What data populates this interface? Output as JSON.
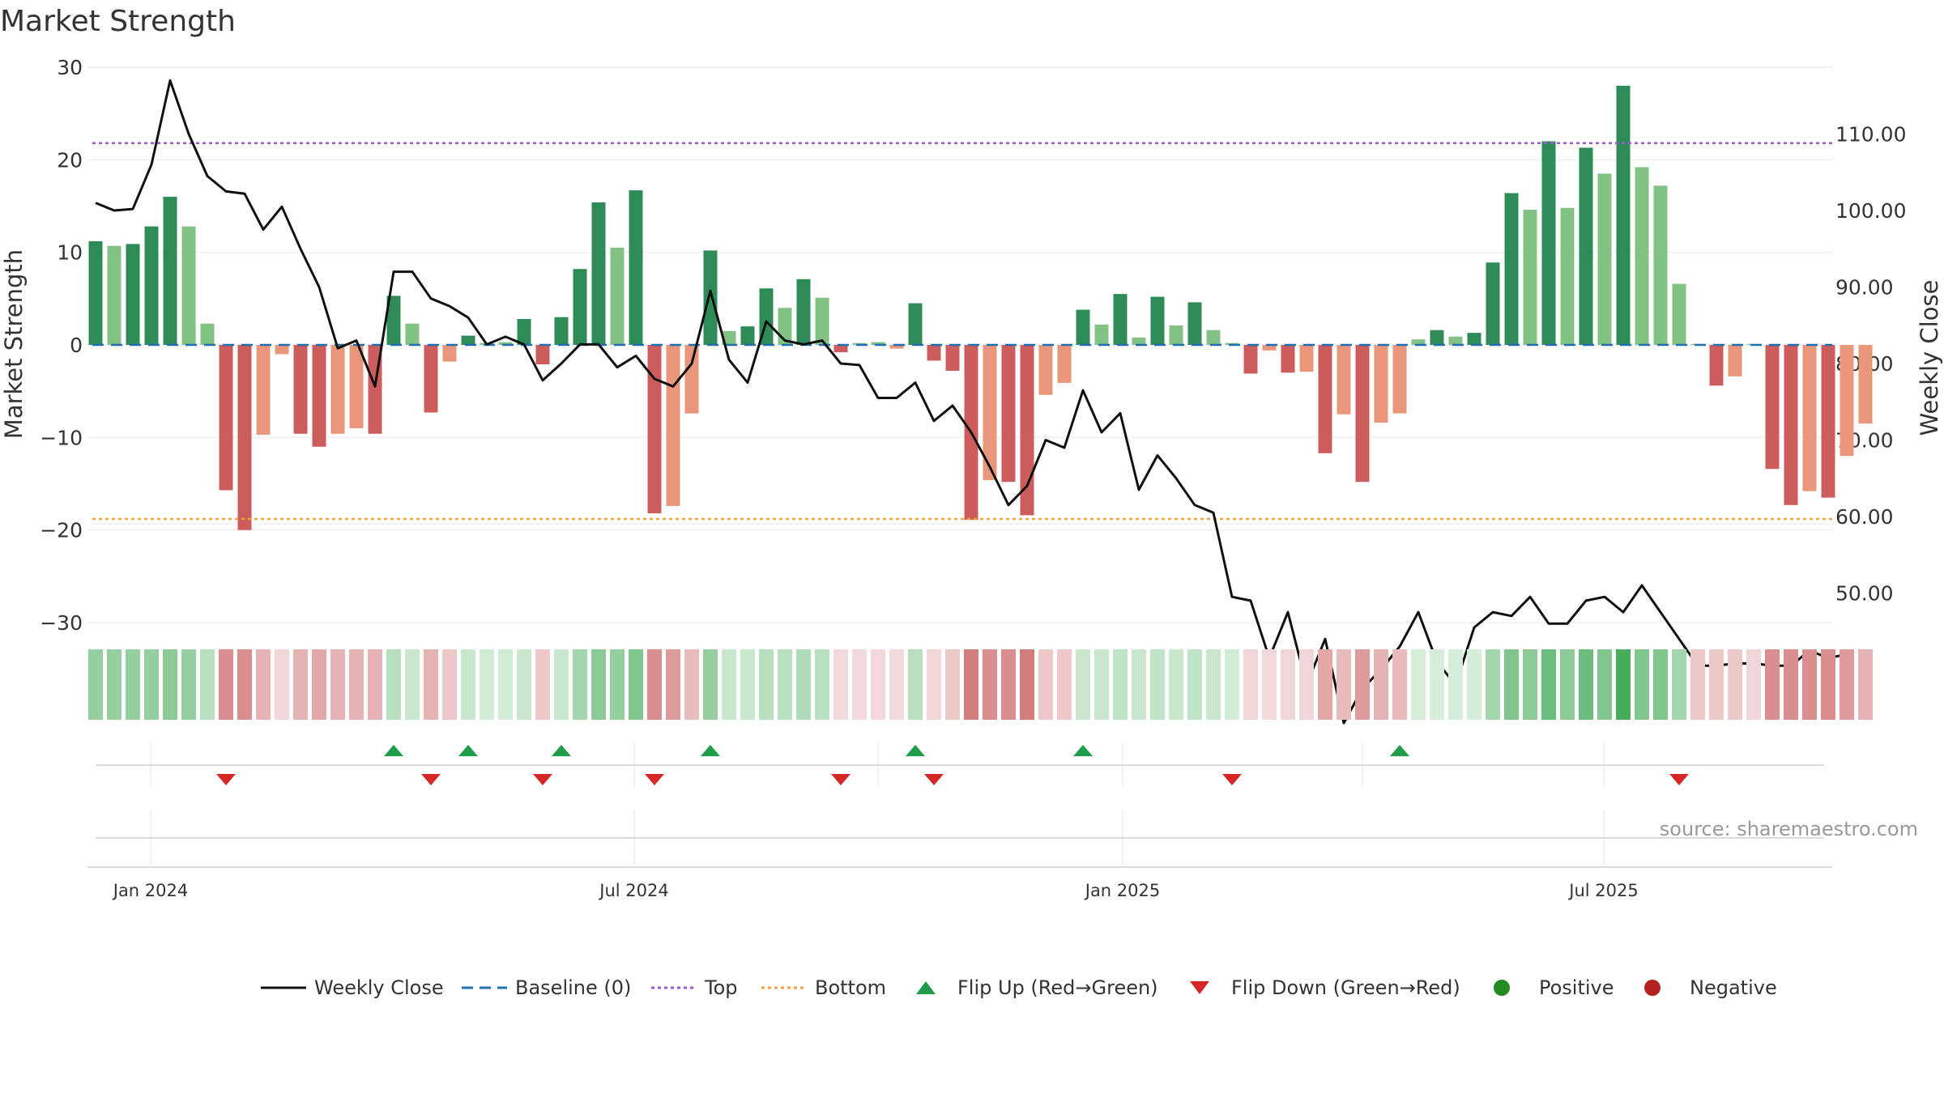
{
  "chart_data": {
    "type": "bar",
    "title": "Market Strength",
    "ylabel": "Market Strength",
    "y2label": "Weekly Close Price",
    "ylim": [
      -30,
      30
    ],
    "y2lim": [
      45,
      120
    ],
    "yticks": [
      "30",
      "20",
      "10",
      "0",
      "−10",
      "−20",
      "−30"
    ],
    "y2ticks": [
      "110.00",
      "100.00",
      "90.00",
      "80.00",
      "70.00",
      "60.00",
      "50.00"
    ],
    "xticks": [
      "Jan 2024",
      "Jul 2024",
      "Jan 2025",
      "Jul 2025"
    ],
    "top_line": 21.8,
    "bottom_line": -18.8,
    "baseline": 0,
    "strength": [
      11.2,
      10.7,
      10.9,
      12.8,
      16.0,
      12.8,
      2.3,
      -15.7,
      -20.0,
      -9.7,
      -1.0,
      -9.6,
      -11.0,
      -9.6,
      -9.0,
      -9.6,
      5.3,
      2.3,
      -7.3,
      -1.8,
      1.0,
      0.2,
      0.3,
      2.8,
      -2.1,
      3.0,
      8.2,
      15.4,
      10.5,
      16.7,
      -18.2,
      -17.4,
      -7.4,
      10.2,
      1.5,
      2.0,
      6.1,
      4.0,
      7.1,
      5.1,
      -0.8,
      0.2,
      0.3,
      -0.4,
      4.5,
      -1.7,
      -2.8,
      -18.9,
      -14.6,
      -14.8,
      -18.4,
      -5.4,
      -4.1,
      3.8,
      2.2,
      5.5,
      0.8,
      5.2,
      2.1,
      4.6,
      1.6,
      0.2,
      -3.1,
      -0.6,
      -3.0,
      -2.9,
      -11.7,
      -7.5,
      -14.8,
      -8.4,
      -7.4,
      0.6,
      1.6,
      0.9,
      1.3,
      8.9,
      16.4,
      14.6,
      22.0,
      14.8,
      21.3,
      18.5,
      28.0,
      19.2,
      17.2,
      6.6,
      0.1,
      -4.4,
      -3.4,
      0.1,
      -13.4,
      -17.3,
      -15.8,
      -16.5,
      -12.0,
      -8.5
    ],
    "bar_shade": [
      "dark",
      "light",
      "dark",
      "dark",
      "dark",
      "light",
      "light",
      "dark",
      "dark",
      "light",
      "light",
      "dark",
      "dark",
      "light",
      "light",
      "dark",
      "dark",
      "light",
      "dark",
      "light",
      "dark",
      "light",
      "light",
      "dark",
      "dark",
      "dark",
      "dark",
      "dark",
      "light",
      "dark",
      "dark",
      "light",
      "light",
      "dark",
      "light",
      "dark",
      "dark",
      "light",
      "dark",
      "light",
      "dark",
      "light",
      "light",
      "light",
      "dark",
      "dark",
      "dark",
      "dark",
      "light",
      "dark",
      "dark",
      "light",
      "light",
      "dark",
      "light",
      "dark",
      "light",
      "dark",
      "light",
      "dark",
      "light",
      "light",
      "dark",
      "light",
      "dark",
      "light",
      "dark",
      "light",
      "dark",
      "light",
      "light",
      "light",
      "dark",
      "light",
      "dark",
      "dark",
      "dark",
      "light",
      "dark",
      "light",
      "dark",
      "light",
      "dark",
      "light",
      "light",
      "light",
      "light",
      "dark",
      "light",
      "light",
      "dark",
      "dark",
      "light",
      "dark",
      "light",
      "light"
    ],
    "weekly_close": [
      101.0,
      100.0,
      100.2,
      106.0,
      117.0,
      110.0,
      104.5,
      102.5,
      102.2,
      97.5,
      100.5,
      95.0,
      90.0,
      82.0,
      83.0,
      77.0,
      92.0,
      92.0,
      88.5,
      87.5,
      86.0,
      82.5,
      83.5,
      82.5,
      77.8,
      80.0,
      82.5,
      82.5,
      79.5,
      81.0,
      78.0,
      77.0,
      80.0,
      89.5,
      80.5,
      77.5,
      85.5,
      83.0,
      82.5,
      83.0,
      80.0,
      79.8,
      75.5,
      75.5,
      77.5,
      72.5,
      74.5,
      71.0,
      66.5,
      61.5,
      64.0,
      70.0,
      69.0,
      76.5,
      71.0,
      73.5,
      63.5,
      68.0,
      65.0,
      61.5,
      60.5,
      49.5,
      49.0,
      41.5,
      47.5,
      38.0,
      44.0,
      33.0,
      37.5,
      40.0,
      43.0,
      47.5,
      41.0,
      38.0,
      45.5,
      47.5,
      47.0,
      49.5,
      46.0,
      46.0,
      49.0,
      49.5,
      47.5,
      51.0,
      47.5,
      44.0,
      40.5,
      40.5,
      40.8,
      40.8,
      40.5,
      40.5,
      42.5,
      41.5,
      42.0
    ],
    "heat_colors": [
      "#95cf9f",
      "#95cf9f",
      "#95cf9f",
      "#95cf9f",
      "#8ccb98",
      "#95cf9f",
      "#b8e0bf",
      "#d98f8f",
      "#d98f8f",
      "#e5b3b3",
      "#f0d6d6",
      "#e5b3b3",
      "#e2a7a7",
      "#e5b3b3",
      "#e5b3b3",
      "#e5b3b3",
      "#b8e0bf",
      "#c9e8cd",
      "#e5b3b3",
      "#ecc9c9",
      "#c9e8cd",
      "#d2ebd6",
      "#d2ebd6",
      "#c9e8cd",
      "#eec8c8",
      "#c9e8cd",
      "#a4d6ad",
      "#8ccb98",
      "#95cf9f",
      "#80c68e",
      "#d98f8f",
      "#dd9b9b",
      "#e8bcbc",
      "#95cf9f",
      "#c9e8cd",
      "#c9e8cd",
      "#b8e0bf",
      "#b8e0bf",
      "#b0dcb8",
      "#b8e0bf",
      "#f2dada",
      "#f2dada",
      "#f2dada",
      "#f2dada",
      "#b8e0bf",
      "#f0d6d6",
      "#ecc9c9",
      "#d27c7c",
      "#d98f8f",
      "#d98f8f",
      "#d27c7c",
      "#eec8c8",
      "#eec8c8",
      "#c9e8cd",
      "#c9e8cd",
      "#c0e4c6",
      "#c9e8cd",
      "#c0e4c6",
      "#c9e8cd",
      "#c0e4c6",
      "#c9e8cd",
      "#d2ebd6",
      "#f0d6d6",
      "#f2dada",
      "#f0d6d6",
      "#f0d6d6",
      "#e2a7a7",
      "#e8bcbc",
      "#dd9b9b",
      "#e5b3b3",
      "#e8bcbc",
      "#d6eed9",
      "#d6eed9",
      "#d6eed9",
      "#d6eed9",
      "#a4d6ad",
      "#7fc58d",
      "#8ccb98",
      "#6cbd7d",
      "#8ccb98",
      "#6cbd7d",
      "#80c68e",
      "#48ad5b",
      "#80c68e",
      "#80c68e",
      "#a4d6ad",
      "#eec8c8",
      "#ecc9c9",
      "#ecc9c9",
      "#f0d6d6",
      "#d98f8f",
      "#d98f8f",
      "#d98f8f",
      "#d98f8f",
      "#dd9b9b",
      "#e5b3b3"
    ],
    "flip_up_weeks": [
      16,
      20,
      25,
      33,
      44,
      53,
      70
    ],
    "flip_down_weeks": [
      7,
      18,
      24,
      30,
      40,
      45,
      61,
      85
    ],
    "colors": {
      "bar_pos_dark": "#2e8b57",
      "bar_pos_light": "#82c284",
      "bar_neg_dark": "#cd5c5c",
      "bar_neg_light": "#e9967a",
      "close_line": "#111111",
      "baseline": "#1f6fb2",
      "top": "#9b59d0",
      "bottom": "#f0a040",
      "flip_up": "#1f9d4a",
      "flip_down": "#d62728",
      "positive": "#228b22",
      "negative": "#b22222"
    },
    "legend": [
      "Weekly Close",
      "Baseline (0)",
      "Top",
      "Bottom",
      "Flip Up (Red→Green)",
      "Flip Down (Green→Red)",
      "Positive",
      "Negative"
    ],
    "source": "source: sharemaestro.com"
  }
}
